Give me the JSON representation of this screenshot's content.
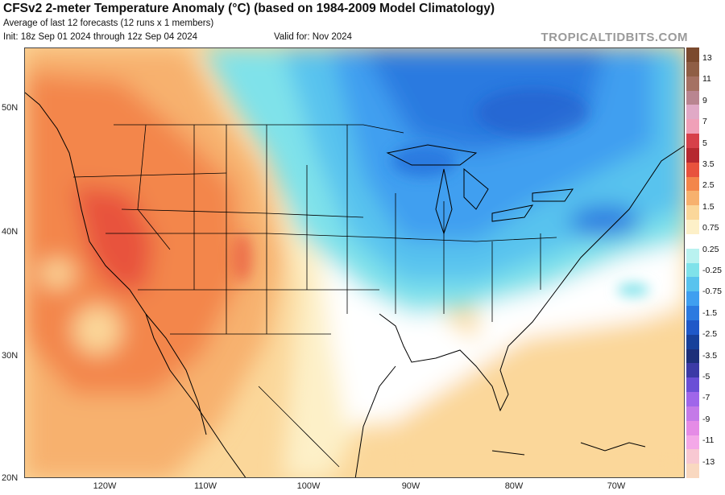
{
  "header": {
    "title": "CFSv2 2-meter Temperature Anomaly (°C) (based on 1984-2009 Model Climatology)",
    "subtitle1": "Average of last 12 forecasts (12 runs x 1 members)",
    "subtitle2": "Init: 18z Sep 01 2024 through 12z Sep 04 2024",
    "valid": "Valid for: Nov 2024",
    "credit": "TROPICALTIDBITS.COM"
  },
  "axes": {
    "lat_labels": [
      "50N",
      "40N",
      "30N",
      "20N"
    ],
    "lon_labels": [
      "120W",
      "110W",
      "100W",
      "90W",
      "80W",
      "70W"
    ]
  },
  "colorbar": {
    "labels": [
      "13",
      "11",
      "9",
      "7",
      "5",
      "3.5",
      "2.5",
      "1.5",
      "0.75",
      "0.25",
      "-0.25",
      "-0.75",
      "-1.5",
      "-2.5",
      "-3.5",
      "-5",
      "-7",
      "-9",
      "-11",
      "-13"
    ],
    "colors": [
      "#7b4a2e",
      "#8f5e45",
      "#a57163",
      "#b98590",
      "#e0a9c6",
      "#f0a0b8",
      "#d7404a",
      "#b62830",
      "#e8523d",
      "#f3864b",
      "#f7b16e",
      "#fbd79a",
      "#fdf0c8",
      "#ffffff",
      "#b9f2f0",
      "#7fe2ea",
      "#59c3ee",
      "#3f9ff0",
      "#2b7ae0",
      "#1f58c8",
      "#17409a",
      "#1c2f7a",
      "#3b3aa6",
      "#6a4fd6",
      "#9f66ea",
      "#c47ae8",
      "#e58be6",
      "#f4a8e8",
      "#f8c8d2",
      "#f9d8c0"
    ]
  },
  "map": {
    "region": "North America",
    "warm_colors": [
      "#fdf0c8",
      "#fbd79a",
      "#f7b16e",
      "#f3864b",
      "#e8523d"
    ],
    "cool_colors": [
      "#b9f2f0",
      "#7fe2ea",
      "#59c3ee",
      "#3f9ff0",
      "#2b7ae0"
    ]
  }
}
